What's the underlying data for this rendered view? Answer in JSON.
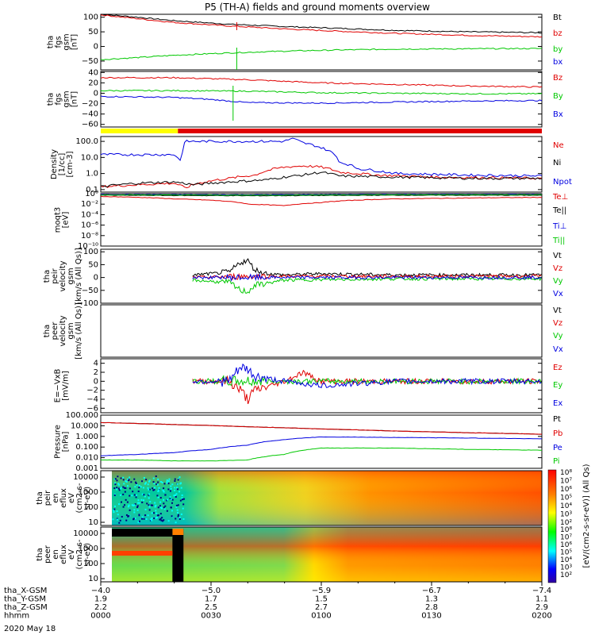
{
  "title": "P5 (TH-A) fields and ground moments overview",
  "colors": {
    "black": "#000000",
    "red": "#e00000",
    "green": "#00c800",
    "blue": "#0000e0",
    "yellow": "#ffff00",
    "lime": "#00ff00",
    "white": "#ffffff"
  },
  "chart_data": [
    {
      "type": "line",
      "ylabel": [
        "tha",
        "fgs",
        "gsm",
        "[nT]"
      ],
      "ylim": [
        -80,
        110
      ],
      "yticks": [
        "100",
        "50",
        "0",
        "−50"
      ],
      "ytick_values": [
        100,
        50,
        0,
        -50
      ],
      "series": [
        {
          "name": "Bt",
          "color": "#000000",
          "t": [
            0,
            10,
            20,
            35,
            50,
            65,
            80,
            100,
            120
          ],
          "values": [
            110,
            100,
            88,
            76,
            68,
            62,
            55,
            50,
            47
          ]
        },
        {
          "name": "bz",
          "color": "#e00000",
          "t": [
            0,
            10,
            20,
            35,
            50,
            65,
            80,
            100,
            120
          ],
          "values": [
            108,
            95,
            82,
            70,
            60,
            52,
            45,
            38,
            33
          ]
        },
        {
          "name": "by",
          "color": "#00c800",
          "t": [
            0,
            10,
            20,
            35,
            50,
            65,
            80,
            100,
            120
          ],
          "values": [
            -45,
            -38,
            -30,
            -22,
            -16,
            -12,
            -9,
            -8,
            -7
          ]
        },
        {
          "name": "bx",
          "color": "#0000e0",
          "t": [],
          "values": []
        }
      ]
    },
    {
      "type": "line",
      "ylabel": [
        "tha",
        "fgs",
        "gsm",
        "[nT]"
      ],
      "ylim": [
        -65,
        42
      ],
      "yticks": [
        "40",
        "20",
        "0",
        "−20",
        "−40",
        "−60"
      ],
      "ytick_values": [
        40,
        20,
        0,
        -20,
        -40,
        -60
      ],
      "series": [
        {
          "name": "Bz",
          "color": "#e00000",
          "t": [
            0,
            20,
            30,
            40,
            60,
            80,
            100,
            120
          ],
          "values": [
            30,
            30,
            28,
            26,
            20,
            17,
            14,
            12
          ]
        },
        {
          "name": "By",
          "color": "#00c800",
          "t": [
            0,
            20,
            40,
            60,
            80,
            100,
            120
          ],
          "values": [
            5,
            5,
            4,
            1,
            0,
            -1,
            -1
          ]
        },
        {
          "name": "Bx",
          "color": "#0000e0",
          "t": [
            0,
            20,
            30,
            40,
            60,
            80,
            100,
            120
          ],
          "values": [
            -6,
            -8,
            -12,
            -18,
            -19,
            -17,
            -15,
            -14
          ]
        }
      ]
    },
    {
      "type": "line",
      "scale": "log",
      "ylabel": [
        "Density",
        "[1/cc]",
        "[cm-3]"
      ],
      "ylim": [
        0.07,
        200
      ],
      "yticks": [
        "100.0",
        "10.0",
        "1.0",
        "0.1"
      ],
      "ytick_values": [
        100,
        10,
        1,
        0.1
      ],
      "series": [
        {
          "name": "Ne",
          "color": "#e00000",
          "t": [
            0,
            10,
            20,
            23,
            25,
            35,
            42,
            50,
            55,
            60,
            65,
            75,
            90,
            120
          ],
          "values": [
            0.15,
            0.2,
            0.25,
            0.12,
            0.2,
            0.5,
            0.8,
            2.5,
            3,
            2.5,
            1.2,
            0.8,
            0.6,
            0.5
          ]
        },
        {
          "name": "Ni",
          "color": "#000000",
          "t": [
            0,
            10,
            20,
            25,
            35,
            45,
            55,
            60,
            65,
            80,
            100,
            120
          ],
          "values": [
            0.15,
            0.25,
            0.3,
            0.2,
            0.3,
            0.4,
            0.8,
            1.2,
            0.7,
            0.6,
            0.5,
            0.5
          ]
        },
        {
          "name": "Npot",
          "color": "#0000e0",
          "t": [
            0,
            10,
            20,
            22,
            23,
            50,
            52,
            55,
            60,
            65,
            70,
            80,
            100,
            120
          ],
          "values": [
            15,
            15,
            15,
            4,
            100,
            100,
            150,
            80,
            40,
            5,
            2,
            1,
            0.8,
            0.7
          ]
        }
      ]
    },
    {
      "type": "line",
      "scale": "log",
      "ylabel": [
        "moqt3",
        "[eV]"
      ],
      "ylim": [
        1e-10,
        1
      ],
      "yticks": [
        "10⁰",
        "10⁻²",
        "10⁻⁴",
        "10⁻⁶",
        "10⁻⁸",
        "10⁻¹⁰"
      ],
      "ytick_values": [
        1,
        0.01,
        0.0001,
        1e-06,
        1e-08,
        1e-10
      ],
      "series": [
        {
          "name": "Te⊥",
          "color": "#e00000",
          "t": [
            0,
            20,
            40,
            50,
            60,
            80,
            120
          ],
          "values": [
            0.3,
            0.1,
            0.01,
            0.005,
            0.02,
            0.1,
            0.2
          ]
        },
        {
          "name": "Te||",
          "color": "#000000",
          "t": [
            0,
            40,
            80,
            120
          ],
          "values": [
            0.5,
            0.4,
            0.5,
            0.5
          ]
        },
        {
          "name": "Ti⊥",
          "color": "#0000e0",
          "t": [
            0,
            40,
            80,
            120
          ],
          "values": [
            0.7,
            0.6,
            0.7,
            0.7
          ]
        },
        {
          "name": "Ti||",
          "color": "#00c800",
          "t": [
            0,
            40,
            80,
            120
          ],
          "values": [
            0.6,
            0.5,
            0.6,
            0.6
          ]
        }
      ]
    },
    {
      "type": "line",
      "ylabel": [
        "tha",
        "peir",
        "velocity",
        "gsm",
        "[km/s (All Qs)]"
      ],
      "ylim": [
        -100,
        110
      ],
      "yticks": [
        "100",
        "50",
        "0",
        "−50",
        "−100"
      ],
      "ytick_values": [
        100,
        50,
        0,
        -50,
        -100
      ],
      "series": [
        {
          "name": "Vt",
          "color": "#000000",
          "t": [
            25,
            30,
            35,
            38,
            40,
            42,
            45,
            50,
            60,
            80,
            100,
            120
          ],
          "values": [
            10,
            15,
            20,
            60,
            65,
            30,
            15,
            10,
            15,
            10,
            10,
            10
          ]
        },
        {
          "name": "Vz",
          "color": "#e00000",
          "t": [
            25,
            40,
            60,
            80,
            120
          ],
          "values": [
            0,
            5,
            5,
            5,
            5
          ]
        },
        {
          "name": "Vy",
          "color": "#00c800",
          "t": [
            25,
            35,
            38,
            40,
            42,
            50,
            80,
            120
          ],
          "values": [
            -10,
            -20,
            -50,
            -55,
            -30,
            -10,
            -5,
            -5
          ]
        },
        {
          "name": "Vx",
          "color": "#0000e0",
          "t": [
            25,
            40,
            60,
            80,
            120
          ],
          "values": [
            0,
            0,
            0,
            0,
            0
          ]
        }
      ]
    },
    {
      "type": "line",
      "ylabel": [
        "tha",
        "peer",
        "velocity",
        "gsm",
        "[km/s (All Qs)]"
      ],
      "ylim": [
        -100,
        110
      ],
      "yticks": [],
      "ytick_values": [],
      "series": [
        {
          "name": "Vt",
          "color": "#000000",
          "t": [],
          "values": []
        },
        {
          "name": "Vz",
          "color": "#e00000",
          "t": [],
          "values": []
        },
        {
          "name": "Vy",
          "color": "#00c800",
          "t": [],
          "values": []
        },
        {
          "name": "Vx",
          "color": "#0000e0",
          "t": [],
          "values": []
        }
      ]
    },
    {
      "type": "line",
      "ylabel": [
        "E=−VxB",
        "[mV/m]"
      ],
      "ylim": [
        -7,
        5
      ],
      "yticks": [
        "4",
        "2",
        "0",
        "−2",
        "−4",
        "−6"
      ],
      "ytick_values": [
        4,
        2,
        0,
        -2,
        -4,
        -6
      ],
      "series": [
        {
          "name": "Ez",
          "color": "#e00000",
          "t": [
            25,
            35,
            38,
            40,
            42,
            50,
            55,
            60,
            80,
            120
          ],
          "values": [
            0,
            0,
            -2,
            -4,
            -2,
            0,
            2,
            0,
            0,
            0
          ]
        },
        {
          "name": "Ey",
          "color": "#00c800",
          "t": [
            25,
            40,
            60,
            80,
            120
          ],
          "values": [
            0,
            0,
            0,
            0,
            0
          ]
        },
        {
          "name": "Ex",
          "color": "#0000e0",
          "t": [
            25,
            35,
            38,
            40,
            42,
            50,
            60,
            80,
            120
          ],
          "values": [
            0,
            0,
            3,
            2.5,
            1,
            0,
            -1,
            0,
            0
          ]
        }
      ]
    },
    {
      "type": "line",
      "scale": "log",
      "ylabel": [
        "Pressure",
        "[nPa]"
      ],
      "ylim": [
        0.001,
        100
      ],
      "yticks": [
        "100.000",
        "10.000",
        "1.000",
        "0.100",
        "0.010",
        "0.001"
      ],
      "ytick_values": [
        100,
        10,
        1,
        0.1,
        0.01,
        0.001
      ],
      "series": [
        {
          "name": "Pt",
          "color": "#000000",
          "t": [
            0,
            20,
            40,
            60,
            80,
            100,
            120
          ],
          "values": [
            20,
            13,
            8,
            5,
            3.2,
            2.2,
            1.6
          ]
        },
        {
          "name": "Pb",
          "color": "#e00000",
          "t": [
            0,
            20,
            40,
            60,
            80,
            100,
            120
          ],
          "values": [
            20,
            13,
            8,
            5,
            3.2,
            2.2,
            1.6
          ]
        },
        {
          "name": "Pe",
          "color": "#0000e0",
          "t": [
            0,
            10,
            20,
            30,
            40,
            50,
            60,
            80,
            100,
            120
          ],
          "values": [
            0.015,
            0.02,
            0.03,
            0.06,
            0.15,
            0.5,
            0.9,
            0.8,
            0.7,
            0.6
          ]
        },
        {
          "name": "Pi",
          "color": "#00c800",
          "t": [
            0,
            10,
            20,
            30,
            40,
            50,
            60,
            80,
            100,
            120
          ],
          "values": [
            0.006,
            0.006,
            0.005,
            0.005,
            0.006,
            0.02,
            0.08,
            0.08,
            0.06,
            0.05
          ]
        }
      ]
    },
    {
      "type": "heatmap",
      "ylabel": [
        "tha",
        "peir",
        "en",
        "eflux",
        "eV",
        "(cm2-s-",
        "sr-eV)"
      ],
      "yticks": [
        "10000",
        "1000",
        "100",
        "10"
      ]
    },
    {
      "type": "heatmap",
      "ylabel": [
        "tha",
        "peer",
        "en",
        "eflux",
        "eV",
        "(cm2-s-",
        "sr-eV)"
      ],
      "yticks": [
        "10000",
        "1000",
        "100",
        "10"
      ]
    }
  ],
  "colorbar": {
    "label": "[eV/(cm2-s-sr-eV)] (All Qs)",
    "ticks_top": [
      "10⁸",
      "10⁷",
      "10⁶",
      "10⁵",
      "10⁴",
      "10³",
      "10²"
    ],
    "ticks_bottom": [
      "10⁸",
      "10⁷",
      "10⁶",
      "10⁵",
      "10⁴",
      "10³",
      "10²"
    ]
  },
  "time_axis": {
    "rows": [
      {
        "label": "tha_X-GSM",
        "values": [
          "−4.0",
          "−5.0",
          "−5.9",
          "−6.7",
          "−7.4"
        ]
      },
      {
        "label": "tha_Y-GSM",
        "values": [
          "1.9",
          "1.7",
          "1.5",
          "1.3",
          "1.1"
        ]
      },
      {
        "label": "tha_Z-GSM",
        "values": [
          "2.2",
          "2.5",
          "2.7",
          "2.8",
          "2.9"
        ]
      },
      {
        "label": "hhmm",
        "values": [
          "0000",
          "0030",
          "0100",
          "0130",
          "0200"
        ]
      }
    ],
    "date": "2020 May 18",
    "tick_minutes": [
      0,
      30,
      60,
      90,
      120
    ]
  }
}
